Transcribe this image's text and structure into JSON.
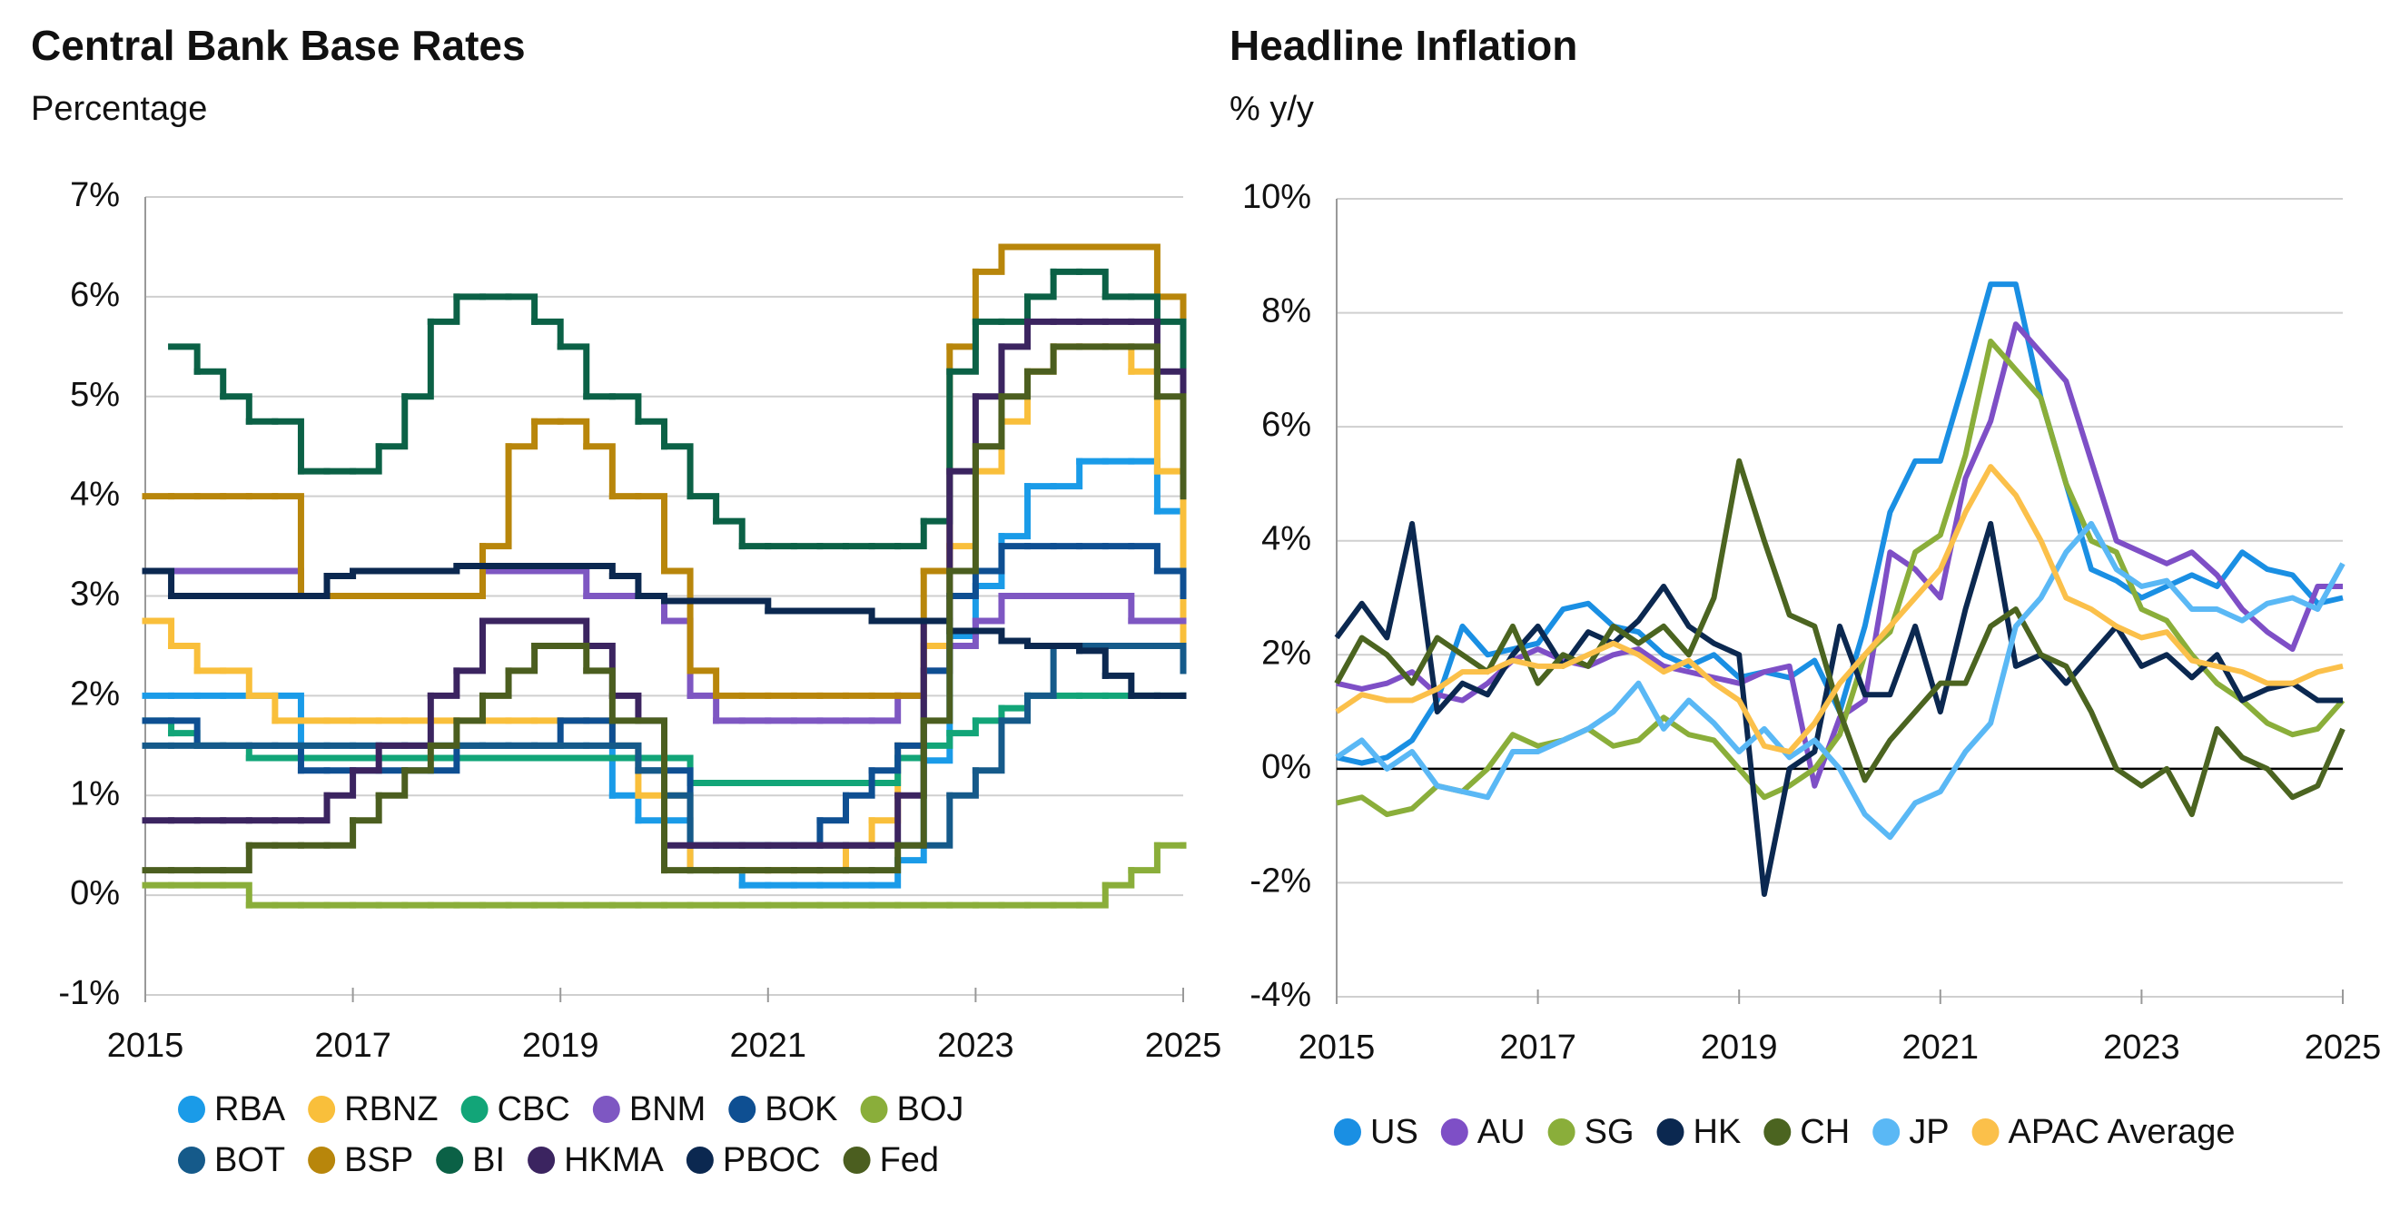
{
  "chart_data": [
    {
      "type": "line",
      "title": "Central Bank Base Rates",
      "subtitle": "Percentage",
      "step": true,
      "grid": true,
      "x": [
        2015,
        2015.25,
        2015.5,
        2015.75,
        2016,
        2016.25,
        2016.5,
        2016.75,
        2017,
        2017.25,
        2017.5,
        2017.75,
        2018,
        2018.25,
        2018.5,
        2018.75,
        2019,
        2019.25,
        2019.5,
        2019.75,
        2020,
        2020.25,
        2020.5,
        2020.75,
        2021,
        2021.25,
        2021.5,
        2021.75,
        2022,
        2022.25,
        2022.5,
        2022.75,
        2023,
        2023.25,
        2023.5,
        2023.75,
        2024,
        2024.25,
        2024.5,
        2024.75,
        2025
      ],
      "xlim": [
        2015,
        2025
      ],
      "xticks": [
        2015,
        2017,
        2019,
        2021,
        2023,
        2025
      ],
      "ylim": [
        -1,
        7
      ],
      "yticks": [
        {
          "value": -1,
          "label": "-1%"
        },
        {
          "value": 0,
          "label": "0%"
        },
        {
          "value": 1,
          "label": "1%"
        },
        {
          "value": 2,
          "label": "2%"
        },
        {
          "value": 3,
          "label": "3%"
        },
        {
          "value": 4,
          "label": "4%"
        },
        {
          "value": 5,
          "label": "5%"
        },
        {
          "value": 6,
          "label": "6%"
        },
        {
          "value": 7,
          "label": "7%"
        }
      ],
      "series": [
        {
          "name": "RBA",
          "color": "#1a9be8",
          "values": [
            2,
            2,
            2,
            2,
            2,
            2,
            1.5,
            1.5,
            1.5,
            1.5,
            1.5,
            1.5,
            1.5,
            1.5,
            1.5,
            1.5,
            1.5,
            1.5,
            1.0,
            0.75,
            0.75,
            0.25,
            0.25,
            0.1,
            0.1,
            0.1,
            0.1,
            0.1,
            0.1,
            0.35,
            1.35,
            2.6,
            3.1,
            3.6,
            4.1,
            4.1,
            4.35,
            4.35,
            4.35,
            3.85,
            3.6
          ]
        },
        {
          "name": "RBNZ",
          "color": "#f9bf3b",
          "values": [
            2.75,
            2.5,
            2.25,
            2.25,
            2.0,
            1.75,
            1.75,
            1.75,
            1.75,
            1.75,
            1.75,
            1.75,
            1.75,
            1.75,
            1.75,
            1.75,
            1.75,
            1.75,
            1.5,
            1.0,
            1.0,
            0.25,
            0.25,
            0.25,
            0.25,
            0.25,
            0.25,
            0.5,
            0.75,
            1.5,
            2.5,
            3.5,
            4.25,
            4.75,
            5.25,
            5.5,
            5.5,
            5.5,
            5.25,
            4.25,
            2.25
          ]
        },
        {
          "name": "CBC",
          "color": "#12a578",
          "values": [
            1.75,
            1.625,
            1.5,
            1.5,
            1.375,
            1.375,
            1.375,
            1.375,
            1.375,
            1.375,
            1.375,
            1.375,
            1.375,
            1.375,
            1.375,
            1.375,
            1.375,
            1.375,
            1.375,
            1.375,
            1.375,
            1.125,
            1.125,
            1.125,
            1.125,
            1.125,
            1.125,
            1.125,
            1.125,
            1.375,
            1.5,
            1.625,
            1.75,
            1.875,
            2.0,
            2.0,
            2.0,
            2.0,
            2.0,
            2.0,
            2.0
          ]
        },
        {
          "name": "BNM",
          "color": "#7e57c2",
          "values": [
            3.25,
            3.25,
            3.25,
            3.25,
            3.25,
            3.25,
            3.0,
            3.0,
            3.0,
            3.0,
            3.0,
            3.0,
            3.0,
            3.25,
            3.25,
            3.25,
            3.25,
            3.0,
            3.0,
            3.0,
            2.75,
            2.0,
            1.75,
            1.75,
            1.75,
            1.75,
            1.75,
            1.75,
            1.75,
            2.0,
            2.25,
            2.5,
            2.75,
            3.0,
            3.0,
            3.0,
            3.0,
            3.0,
            2.75,
            2.75,
            2.75
          ]
        },
        {
          "name": "BOK",
          "color": "#0e4f92",
          "values": [
            1.75,
            1.75,
            1.5,
            1.5,
            1.5,
            1.5,
            1.25,
            1.25,
            1.25,
            1.25,
            1.25,
            1.25,
            1.5,
            1.5,
            1.5,
            1.5,
            1.75,
            1.75,
            1.5,
            1.25,
            1.25,
            0.5,
            0.5,
            0.5,
            0.5,
            0.5,
            0.75,
            1.0,
            1.25,
            1.5,
            2.25,
            3.0,
            3.25,
            3.5,
            3.5,
            3.5,
            3.5,
            3.5,
            3.5,
            3.25,
            3.0
          ]
        },
        {
          "name": "BOJ",
          "color": "#8aae3a",
          "values": [
            0.1,
            0.1,
            0.1,
            0.1,
            -0.1,
            -0.1,
            -0.1,
            -0.1,
            -0.1,
            -0.1,
            -0.1,
            -0.1,
            -0.1,
            -0.1,
            -0.1,
            -0.1,
            -0.1,
            -0.1,
            -0.1,
            -0.1,
            -0.1,
            -0.1,
            -0.1,
            -0.1,
            -0.1,
            -0.1,
            -0.1,
            -0.1,
            -0.1,
            -0.1,
            -0.1,
            -0.1,
            -0.1,
            -0.1,
            -0.1,
            -0.1,
            -0.1,
            0.1,
            0.25,
            0.5,
            0.5
          ]
        },
        {
          "name": "BOT",
          "color": "#155a8a",
          "values": [
            1.5,
            1.5,
            1.5,
            1.5,
            1.5,
            1.5,
            1.5,
            1.5,
            1.5,
            1.5,
            1.5,
            1.5,
            1.5,
            1.5,
            1.5,
            1.5,
            1.5,
            1.5,
            1.5,
            1.25,
            1.0,
            0.5,
            0.5,
            0.5,
            0.5,
            0.5,
            0.5,
            0.5,
            0.5,
            0.5,
            0.5,
            1.0,
            1.25,
            1.75,
            2.0,
            2.5,
            2.5,
            2.5,
            2.5,
            2.5,
            2.25
          ]
        },
        {
          "name": "BSP",
          "color": "#b8860b",
          "values": [
            4.0,
            4.0,
            4.0,
            4.0,
            4.0,
            4.0,
            3.0,
            3.0,
            3.0,
            3.0,
            3.0,
            3.0,
            3.0,
            3.5,
            4.5,
            4.75,
            4.75,
            4.5,
            4.0,
            4.0,
            3.25,
            2.25,
            2.0,
            2.0,
            2.0,
            2.0,
            2.0,
            2.0,
            2.0,
            2.0,
            3.25,
            5.5,
            6.25,
            6.5,
            6.5,
            6.5,
            6.5,
            6.5,
            6.5,
            6.0,
            4.5
          ]
        },
        {
          "name": "BI",
          "color": "#0b6146",
          "values": [
            null,
            5.5,
            5.25,
            5.0,
            4.75,
            4.75,
            4.25,
            4.25,
            4.25,
            4.5,
            5.0,
            5.75,
            6.0,
            6.0,
            6.0,
            5.75,
            5.5,
            5.0,
            5.0,
            4.75,
            4.5,
            4.0,
            3.75,
            3.5,
            3.5,
            3.5,
            3.5,
            3.5,
            3.5,
            3.5,
            3.75,
            5.25,
            5.75,
            5.75,
            6.0,
            6.25,
            6.25,
            6.0,
            6.0,
            5.75,
            4.75
          ]
        },
        {
          "name": "HKMA",
          "color": "#3b2460",
          "values": [
            0.75,
            0.75,
            0.75,
            0.75,
            0.75,
            0.75,
            0.75,
            1.0,
            1.25,
            1.5,
            1.5,
            2.0,
            2.25,
            2.75,
            2.75,
            2.75,
            2.75,
            2.5,
            2.0,
            1.75,
            0.5,
            0.5,
            0.5,
            0.5,
            0.5,
            0.5,
            0.5,
            0.5,
            0.5,
            1.0,
            2.75,
            4.25,
            5.0,
            5.5,
            5.75,
            5.75,
            5.75,
            5.75,
            5.75,
            5.25,
            4.25
          ]
        },
        {
          "name": "PBOC",
          "color": "#0b2850",
          "values": [
            3.25,
            3.0,
            3.0,
            3.0,
            3.0,
            3.0,
            3.0,
            3.2,
            3.25,
            3.25,
            3.25,
            3.25,
            3.3,
            3.3,
            3.3,
            3.3,
            3.3,
            3.3,
            3.2,
            3.0,
            2.95,
            2.95,
            2.95,
            2.95,
            2.85,
            2.85,
            2.85,
            2.85,
            2.75,
            2.75,
            2.75,
            2.65,
            2.65,
            2.55,
            2.5,
            2.5,
            2.45,
            2.2,
            2.0,
            2.0,
            2.0
          ]
        },
        {
          "name": "Fed",
          "color": "#4b5e1f",
          "values": [
            0.25,
            0.25,
            0.25,
            0.25,
            0.5,
            0.5,
            0.5,
            0.5,
            0.75,
            1.0,
            1.25,
            1.5,
            1.75,
            2.0,
            2.25,
            2.5,
            2.5,
            2.25,
            1.75,
            1.75,
            0.25,
            0.25,
            0.25,
            0.25,
            0.25,
            0.25,
            0.25,
            0.25,
            0.25,
            0.5,
            1.75,
            3.25,
            4.5,
            5.0,
            5.25,
            5.5,
            5.5,
            5.5,
            5.5,
            5.0,
            4.0
          ]
        }
      ]
    },
    {
      "type": "line",
      "title": "Headline Inflation",
      "subtitle": "% y/y",
      "grid": true,
      "zero_line": true,
      "x": [
        2015,
        2015.25,
        2015.5,
        2015.75,
        2016,
        2016.25,
        2016.5,
        2016.75,
        2017,
        2017.25,
        2017.5,
        2017.75,
        2018,
        2018.25,
        2018.5,
        2018.75,
        2019,
        2019.25,
        2019.5,
        2019.75,
        2020,
        2020.25,
        2020.5,
        2020.75,
        2021,
        2021.25,
        2021.5,
        2021.75,
        2022,
        2022.25,
        2022.5,
        2022.75,
        2023,
        2023.25,
        2023.5,
        2023.75,
        2024,
        2024.25,
        2024.5,
        2024.75,
        2025
      ],
      "xlim": [
        2015,
        2025
      ],
      "xticks": [
        2015,
        2017,
        2019,
        2021,
        2023,
        2025
      ],
      "ylim": [
        -4,
        10
      ],
      "yticks": [
        {
          "value": -4,
          "label": "-4%"
        },
        {
          "value": -2,
          "label": "-2%"
        },
        {
          "value": 0,
          "label": "0%"
        },
        {
          "value": 2,
          "label": "2%"
        },
        {
          "value": 4,
          "label": "4%"
        },
        {
          "value": 6,
          "label": "6%"
        },
        {
          "value": 8,
          "label": "8%"
        },
        {
          "value": 10,
          "label": "10%"
        }
      ],
      "series": [
        {
          "name": "US",
          "color": "#1a8fe3",
          "values": [
            0.2,
            0.1,
            0.2,
            0.5,
            1.2,
            2.5,
            2.0,
            2.1,
            2.2,
            2.8,
            2.9,
            2.5,
            2.4,
            2.0,
            1.8,
            2.0,
            1.6,
            1.7,
            1.6,
            1.9,
            1.0,
            2.5,
            4.5,
            5.4,
            5.4,
            6.9,
            8.5,
            8.5,
            6.5,
            5.0,
            3.5,
            3.3,
            3.0,
            3.2,
            3.4,
            3.2,
            3.8,
            3.5,
            3.4,
            2.9,
            3.0
          ]
        },
        {
          "name": "AU",
          "color": "#7e4fc6",
          "values": [
            1.5,
            1.4,
            1.5,
            1.7,
            1.3,
            1.2,
            1.5,
            1.9,
            2.1,
            1.9,
            1.8,
            2.0,
            2.1,
            1.8,
            1.7,
            1.6,
            1.5,
            1.7,
            1.8,
            -0.3,
            0.9,
            1.2,
            3.8,
            3.5,
            3.0,
            5.1,
            6.1,
            7.8,
            7.3,
            6.8,
            5.4,
            4.0,
            3.8,
            3.6,
            3.8,
            3.4,
            2.8,
            2.4,
            2.1,
            3.2,
            3.2
          ]
        },
        {
          "name": "SG",
          "color": "#8aae3a",
          "values": [
            -0.6,
            -0.5,
            -0.8,
            -0.7,
            -0.3,
            -0.4,
            0.0,
            0.6,
            0.4,
            0.5,
            0.7,
            0.4,
            0.5,
            0.9,
            0.6,
            0.5,
            0.0,
            -0.5,
            -0.3,
            0.0,
            0.6,
            2.0,
            2.4,
            3.8,
            4.1,
            5.5,
            7.5,
            7.0,
            6.5,
            5.0,
            4.0,
            3.8,
            2.8,
            2.6,
            2.0,
            1.5,
            1.2,
            0.8,
            0.6,
            0.7,
            1.2
          ]
        },
        {
          "name": "HK",
          "color": "#0b2850",
          "values": [
            2.3,
            2.9,
            2.3,
            4.3,
            1.0,
            1.5,
            1.3,
            2.0,
            2.5,
            1.8,
            2.4,
            2.2,
            2.6,
            3.2,
            2.5,
            2.2,
            2.0,
            -2.2,
            0.0,
            0.3,
            2.5,
            1.3,
            1.3,
            2.5,
            1.0,
            2.8,
            4.3,
            1.8,
            2.0,
            1.5,
            2.0,
            2.5,
            1.8,
            2.0,
            1.6,
            2.0,
            1.2,
            1.4,
            1.5,
            1.2,
            1.2
          ]
        },
        {
          "name": "CH",
          "color": "#4b6420",
          "values": [
            1.5,
            2.3,
            2.0,
            1.5,
            2.3,
            2.0,
            1.7,
            2.5,
            1.5,
            2.0,
            1.8,
            2.5,
            2.2,
            2.5,
            2.0,
            3.0,
            5.4,
            4.0,
            2.7,
            2.5,
            1.0,
            -0.2,
            0.5,
            1.0,
            1.5,
            1.5,
            2.5,
            2.8,
            2.0,
            1.8,
            1.0,
            0.0,
            -0.3,
            0.0,
            -0.8,
            0.7,
            0.2,
            0.0,
            -0.5,
            -0.3,
            0.7
          ]
        },
        {
          "name": "JP",
          "color": "#5ab8f5",
          "values": [
            0.2,
            0.5,
            0.0,
            0.3,
            -0.3,
            -0.4,
            -0.5,
            0.3,
            0.3,
            0.5,
            0.7,
            1.0,
            1.5,
            0.7,
            1.2,
            0.8,
            0.3,
            0.7,
            0.2,
            0.5,
            0.0,
            -0.8,
            -1.2,
            -0.6,
            -0.4,
            0.3,
            0.8,
            2.5,
            3.0,
            3.8,
            4.3,
            3.5,
            3.2,
            3.3,
            2.8,
            2.8,
            2.6,
            2.9,
            3.0,
            2.8,
            3.6
          ]
        },
        {
          "name": "APAC Average",
          "color": "#fbc04a",
          "values": [
            1.0,
            1.3,
            1.2,
            1.2,
            1.4,
            1.7,
            1.7,
            1.9,
            1.8,
            1.8,
            2.0,
            2.2,
            2.0,
            1.7,
            1.9,
            1.5,
            1.2,
            0.4,
            0.3,
            0.8,
            1.5,
            2.0,
            2.5,
            3.0,
            3.5,
            4.5,
            5.3,
            4.8,
            4.0,
            3.0,
            2.8,
            2.5,
            2.3,
            2.4,
            1.9,
            1.8,
            1.7,
            1.5,
            1.5,
            1.7,
            1.8
          ]
        }
      ]
    }
  ]
}
